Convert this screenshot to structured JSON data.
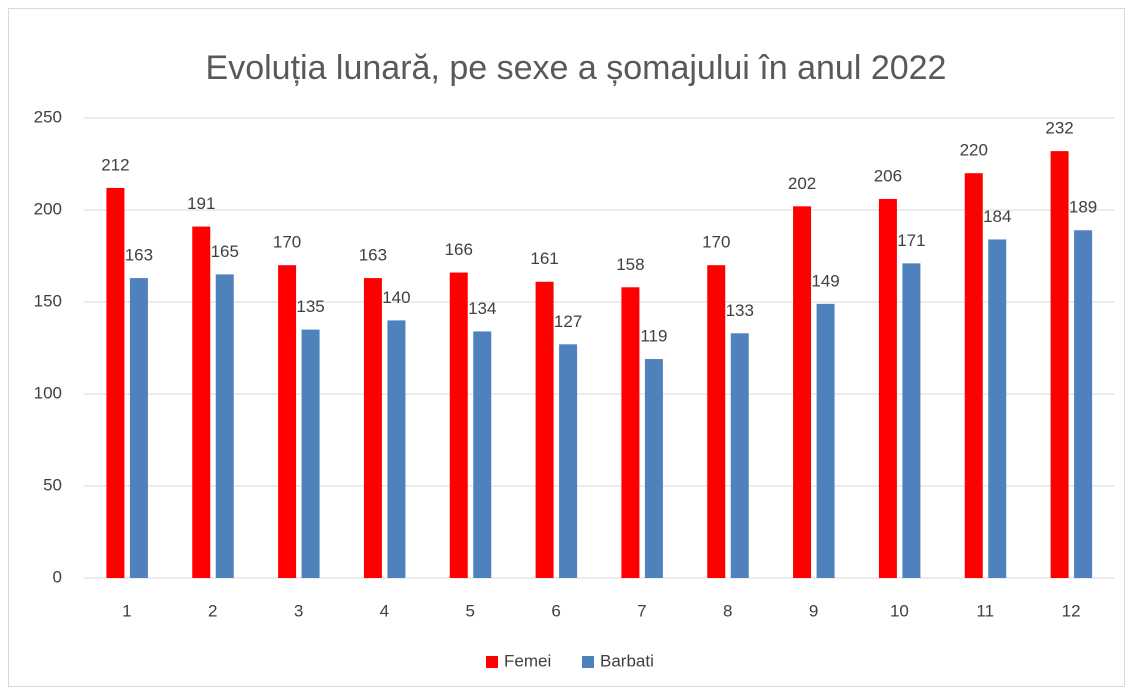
{
  "chart_data": {
    "type": "bar",
    "title": "Evoluția lunară, pe sexe a șomajului în anul 2022",
    "categories": [
      "1",
      "2",
      "3",
      "4",
      "5",
      "6",
      "7",
      "8",
      "9",
      "10",
      "11",
      "12"
    ],
    "series": [
      {
        "name": "Femei",
        "color": "#ff0000",
        "values": [
          212,
          191,
          170,
          163,
          166,
          161,
          158,
          170,
          202,
          206,
          220,
          232
        ]
      },
      {
        "name": "Barbati",
        "color": "#4f81bd",
        "values": [
          163,
          165,
          135,
          140,
          134,
          127,
          119,
          133,
          149,
          171,
          184,
          189
        ]
      }
    ],
    "ylim": [
      0,
      250
    ],
    "yticks": [
      0,
      50,
      100,
      150,
      200,
      250
    ],
    "grid": true,
    "legend": "bottom"
  }
}
